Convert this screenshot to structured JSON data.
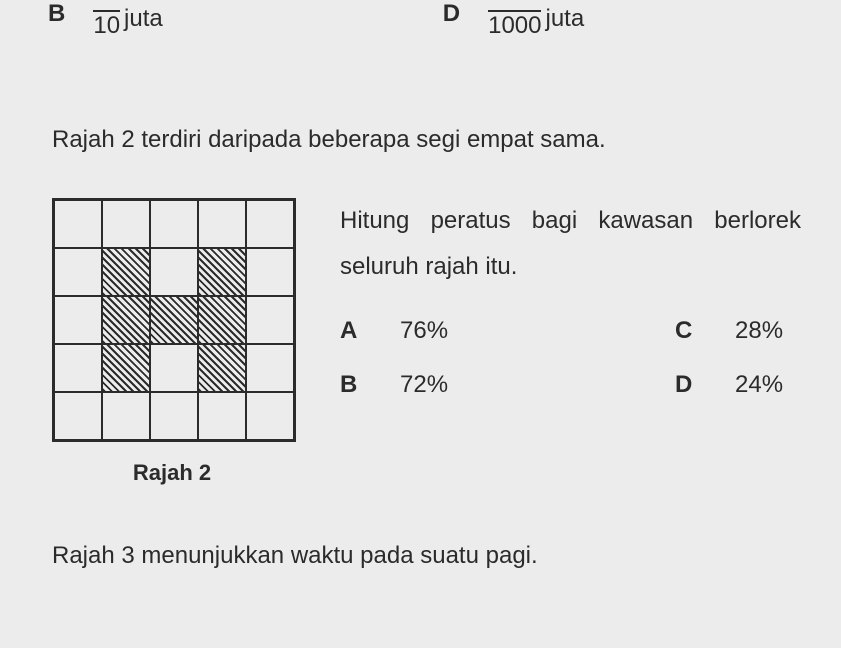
{
  "top": {
    "left": {
      "letter": "B",
      "denominator": "10",
      "unit": "juta"
    },
    "right": {
      "letter": "D",
      "denominator": "1000",
      "unit": "juta"
    }
  },
  "q2": {
    "intro": "Rajah 2 terdiri daripada beberapa segi empat sama.",
    "stem": "Hitung peratus bagi kawasan berlorek seluruh rajah itu.",
    "figure_caption": "Rajah 2",
    "grid": {
      "cols": 5,
      "rows": 5,
      "shaded_cells": [
        [
          1,
          1
        ],
        [
          1,
          3
        ],
        [
          2,
          1
        ],
        [
          2,
          2
        ],
        [
          2,
          3
        ],
        [
          3,
          1
        ],
        [
          3,
          3
        ]
      ]
    },
    "options": {
      "A": "76%",
      "B": "72%",
      "C": "28%",
      "D": "24%"
    }
  },
  "q3": {
    "intro": "Rajah 3 menunjukkan waktu pada suatu pagi."
  }
}
